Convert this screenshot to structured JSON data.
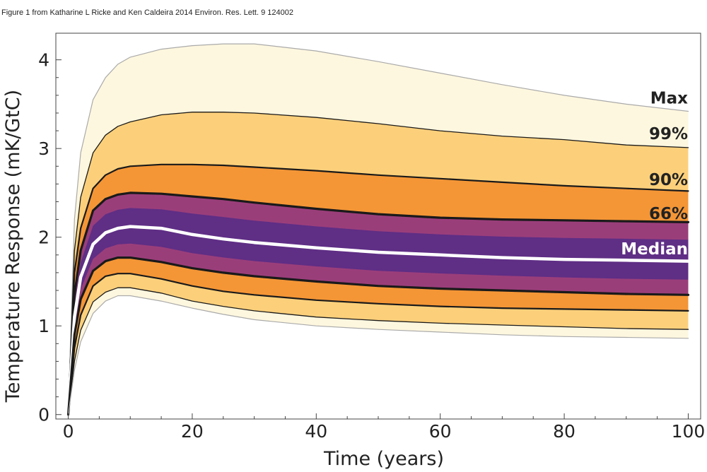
{
  "caption": "Figure 1 from Katharine L Ricke and Ken Caldeira 2014 Environ. Res. Lett. 9 124002",
  "chart_data": {
    "type": "line",
    "title": "",
    "xlabel": "Time (years)",
    "ylabel": "Temperature Response (mK/GtC)",
    "xlim": [
      -2,
      102
    ],
    "ylim": [
      -0.05,
      4.3
    ],
    "xticks": [
      0,
      20,
      40,
      60,
      80,
      100
    ],
    "yticks": [
      0,
      1,
      2,
      3,
      4
    ],
    "grid": false,
    "x": [
      0,
      1,
      2,
      4,
      6,
      8,
      10,
      15,
      20,
      25,
      30,
      40,
      50,
      60,
      70,
      80,
      90,
      100
    ],
    "series": [
      {
        "name": "Max",
        "color": "#aaaaaa",
        "values": [
          0,
          2.2,
          2.95,
          3.55,
          3.8,
          3.95,
          4.03,
          4.12,
          4.16,
          4.18,
          4.18,
          4.1,
          3.98,
          3.85,
          3.72,
          3.6,
          3.5,
          3.42
        ]
      },
      {
        "name": "99%",
        "color": "#1a1a1a",
        "values": [
          0,
          1.85,
          2.45,
          2.95,
          3.15,
          3.25,
          3.3,
          3.38,
          3.41,
          3.41,
          3.4,
          3.35,
          3.28,
          3.2,
          3.14,
          3.1,
          3.04,
          3.01
        ]
      },
      {
        "name": "90%",
        "color": "#1a1a1a",
        "values": [
          0,
          1.6,
          2.1,
          2.55,
          2.7,
          2.77,
          2.8,
          2.82,
          2.82,
          2.81,
          2.79,
          2.75,
          2.7,
          2.66,
          2.62,
          2.58,
          2.55,
          2.52
        ]
      },
      {
        "name": "66%",
        "color": "#1a1a1a",
        "values": [
          0,
          1.35,
          1.85,
          2.3,
          2.43,
          2.48,
          2.5,
          2.49,
          2.46,
          2.43,
          2.39,
          2.32,
          2.26,
          2.22,
          2.2,
          2.19,
          2.18,
          2.17
        ]
      },
      {
        "name": "Median",
        "color": "#ffffff",
        "values": [
          0,
          1.1,
          1.55,
          1.92,
          2.05,
          2.1,
          2.12,
          2.1,
          2.03,
          1.98,
          1.94,
          1.88,
          1.83,
          1.8,
          1.77,
          1.75,
          1.74,
          1.73
        ]
      },
      {
        "name": "",
        "color": "#1a1a1a",
        "values": [
          0,
          0.9,
          1.3,
          1.62,
          1.73,
          1.77,
          1.77,
          1.72,
          1.65,
          1.6,
          1.56,
          1.5,
          1.45,
          1.42,
          1.4,
          1.38,
          1.36,
          1.35
        ]
      },
      {
        "name": "",
        "color": "#1a1a1a",
        "values": [
          0,
          0.75,
          1.12,
          1.45,
          1.56,
          1.59,
          1.59,
          1.53,
          1.45,
          1.39,
          1.35,
          1.29,
          1.25,
          1.22,
          1.2,
          1.19,
          1.18,
          1.17
        ]
      },
      {
        "name": "",
        "color": "#1a1a1a",
        "values": [
          0,
          0.6,
          0.95,
          1.27,
          1.38,
          1.43,
          1.43,
          1.37,
          1.28,
          1.22,
          1.17,
          1.1,
          1.06,
          1.03,
          1.01,
          0.99,
          0.97,
          0.96
        ]
      },
      {
        "name": "",
        "color": "#aaaaaa",
        "values": [
          0,
          0.5,
          0.82,
          1.14,
          1.28,
          1.34,
          1.34,
          1.28,
          1.2,
          1.13,
          1.07,
          1.0,
          0.96,
          0.93,
          0.9,
          0.88,
          0.87,
          0.86
        ]
      }
    ],
    "band_colors": [
      "#fdf0c4",
      "#fbc96a",
      "#f28c2a",
      "#d24a3a",
      "#8a2f86",
      "#4b2a8a"
    ]
  }
}
